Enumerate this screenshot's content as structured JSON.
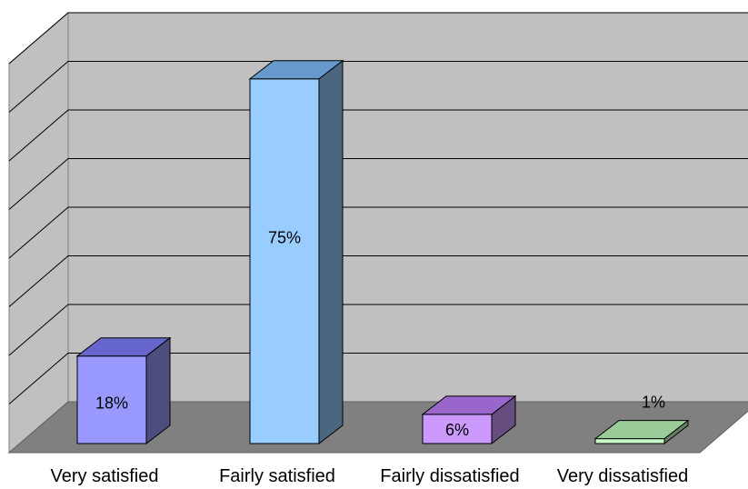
{
  "chart_data": {
    "type": "bar",
    "three_d": true,
    "categories": [
      "Very satisfied",
      "Fairly satisfied",
      "Fairly dissatisfied",
      "Very dissatisfied"
    ],
    "values": [
      18,
      75,
      6,
      1
    ],
    "data_labels": [
      "18%",
      "75%",
      "6%",
      "1%"
    ],
    "value_unit": "%",
    "ylim": [
      0,
      80
    ],
    "grid": true,
    "title": "",
    "xlabel": "",
    "ylabel": "",
    "legend": "none",
    "colors": {
      "bars": [
        "#9999FF",
        "#99CCFF",
        "#CC99FF",
        "#CCFFCC"
      ],
      "bar_tops": [
        "#6666CC",
        "#6699CC",
        "#9966CC",
        "#99CC99"
      ],
      "bar_sides": [
        "#4D4D80",
        "#4D6680",
        "#664D80",
        "#668066"
      ],
      "back_wall": "#C0C0C0",
      "side_wall": "#C0C0C0",
      "floor": "#808080",
      "gridline": "#000000"
    }
  }
}
